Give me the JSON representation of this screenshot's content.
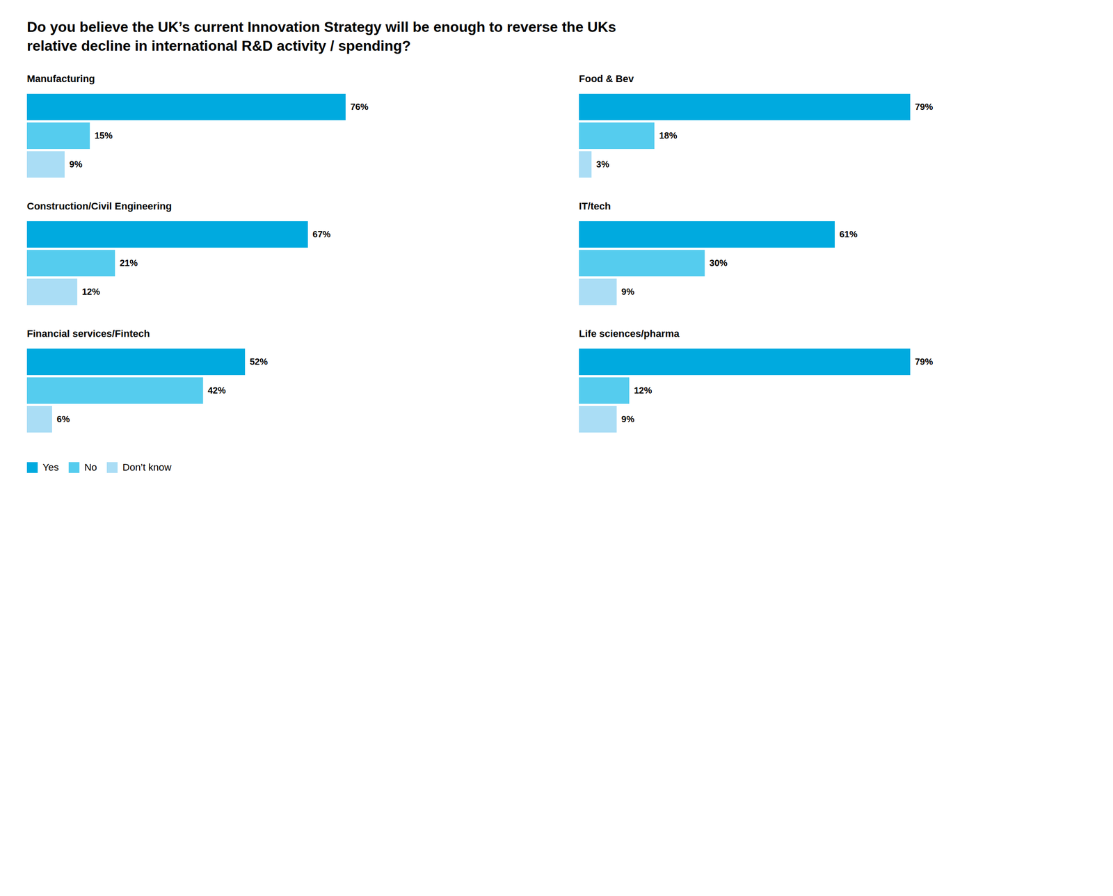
{
  "chart_data": {
    "type": "bar",
    "orientation": "horizontal",
    "title": "Do you believe the UK’s current Innovation Strategy will be enough to reverse the UKs\nrelative decline in international R&D activity / spending?",
    "categories": [
      "Manufacturing",
      "Construction/Civil Engineering",
      "Financial services/Fintech",
      "Food & Bev",
      "IT/tech",
      "Life sciences/pharma"
    ],
    "series": [
      {
        "name": "Yes",
        "color": "#00aadf",
        "values": [
          76,
          67,
          52,
          79,
          61,
          79
        ],
        "value_labels": [
          "76%",
          "67%",
          "52%",
          "79%",
          "61%",
          "79%"
        ]
      },
      {
        "name": "No",
        "color": "#55ccee",
        "values": [
          15,
          21,
          42,
          18,
          30,
          12
        ],
        "value_labels": [
          "15%",
          "21%",
          "42%",
          "18%",
          "30%",
          "12%"
        ]
      },
      {
        "name": "Don’t know",
        "color": "#aaddf5",
        "values": [
          9,
          12,
          6,
          3,
          9,
          9
        ],
        "value_labels": [
          "9%",
          "12%",
          "6%",
          "3%",
          "9%",
          "9%"
        ]
      }
    ],
    "xlim": [
      0,
      122
    ],
    "data_labels": true,
    "tick_labels": false,
    "grid": false,
    "legend": "lower left"
  }
}
